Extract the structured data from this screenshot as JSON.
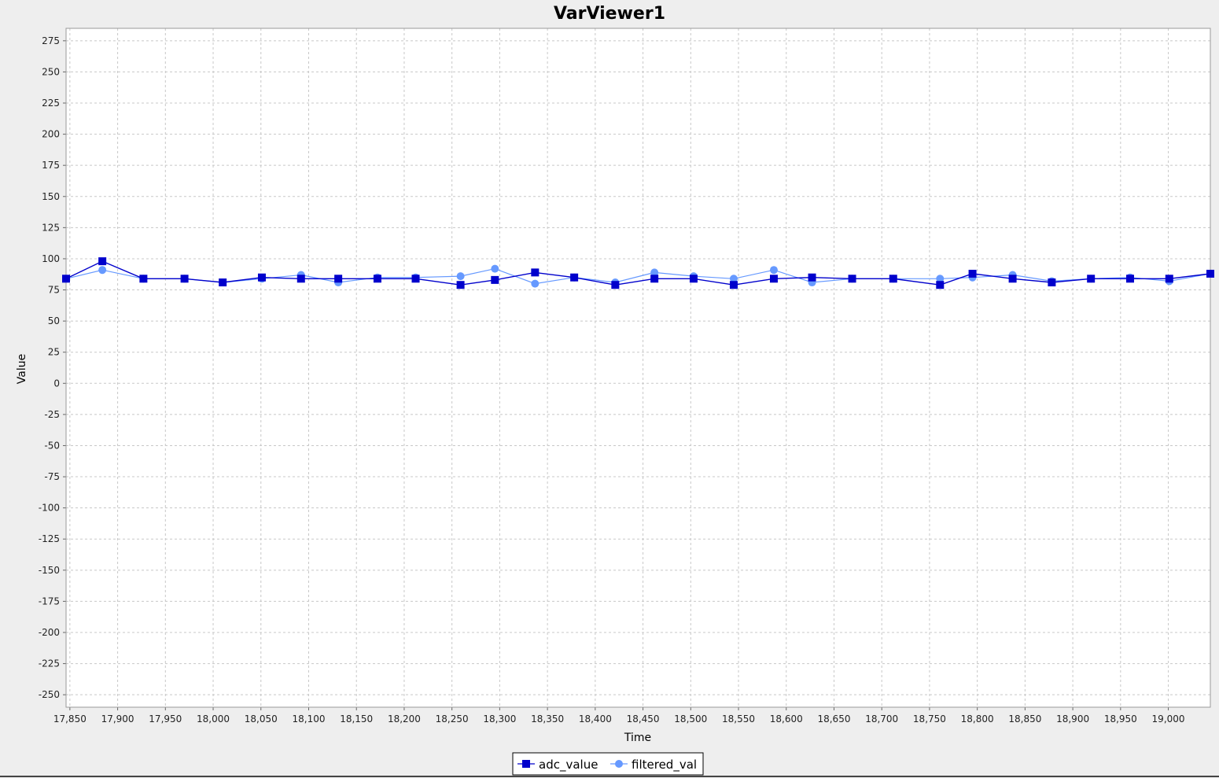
{
  "colors": {
    "background": "#eeeeee",
    "plot_background": "#ffffff",
    "gridline": "#c8c8c8",
    "adc_value": "#0000cc",
    "filtered_val": "#6699ff"
  },
  "chart_data": {
    "type": "line",
    "title": "VarViewer1",
    "xlabel": "Time",
    "ylabel": "Value",
    "xlim": [
      17846,
      19044
    ],
    "ylim": [
      -260,
      285
    ],
    "x_ticks": [
      17850,
      17900,
      17950,
      18000,
      18050,
      18100,
      18150,
      18200,
      18250,
      18300,
      18350,
      18400,
      18450,
      18500,
      18550,
      18600,
      18650,
      18700,
      18750,
      18800,
      18850,
      18900,
      18950,
      19000
    ],
    "x_tick_labels": [
      "17,850",
      "17,900",
      "17,950",
      "18,000",
      "18,050",
      "18,100",
      "18,150",
      "18,200",
      "18,250",
      "18,300",
      "18,350",
      "18,400",
      "18,450",
      "18,500",
      "18,550",
      "18,600",
      "18,650",
      "18,700",
      "18,750",
      "18,800",
      "18,850",
      "18,900",
      "18,950",
      "19,000"
    ],
    "y_ticks": [
      275,
      250,
      225,
      200,
      175,
      150,
      125,
      100,
      75,
      50,
      25,
      0,
      -25,
      -50,
      -75,
      -100,
      -125,
      -150,
      -175,
      -200,
      -225,
      -250
    ],
    "y_tick_labels": [
      "275",
      "250",
      "225",
      "200",
      "175",
      "150",
      "125",
      "100",
      "75",
      "50",
      "25",
      "0",
      "-25",
      "-50",
      "-75",
      "-100",
      "-125",
      "-150",
      "-175",
      "-200",
      "-225",
      "-250"
    ],
    "grid": true,
    "legend_position": "bottom-center",
    "series": [
      {
        "name": "adc_value",
        "marker": "square",
        "points": [
          [
            17846,
            84
          ],
          [
            17884,
            98
          ],
          [
            17927,
            84
          ],
          [
            17970,
            84
          ],
          [
            18010,
            81
          ],
          [
            18051,
            85
          ],
          [
            18092,
            84
          ],
          [
            18131,
            84
          ],
          [
            18172,
            84
          ],
          [
            18212,
            84
          ],
          [
            18259,
            79
          ],
          [
            18295,
            83
          ],
          [
            18337,
            89
          ],
          [
            18378,
            85
          ],
          [
            18421,
            79
          ],
          [
            18462,
            84
          ],
          [
            18503,
            84
          ],
          [
            18545,
            79
          ],
          [
            18587,
            84
          ],
          [
            18627,
            85
          ],
          [
            18669,
            84
          ],
          [
            18712,
            84
          ],
          [
            18761,
            79
          ],
          [
            18795,
            88
          ],
          [
            18837,
            84
          ],
          [
            18878,
            81
          ],
          [
            18919,
            84
          ],
          [
            18960,
            84
          ],
          [
            19001,
            84
          ],
          [
            19044,
            88
          ]
        ]
      },
      {
        "name": "filtered_val",
        "marker": "circle",
        "points": [
          [
            17846,
            84
          ],
          [
            17884,
            91
          ],
          [
            17927,
            84
          ],
          [
            17970,
            84
          ],
          [
            18010,
            81
          ],
          [
            18051,
            84
          ],
          [
            18092,
            87
          ],
          [
            18131,
            81
          ],
          [
            18172,
            85
          ],
          [
            18212,
            85
          ],
          [
            18259,
            86
          ],
          [
            18295,
            92
          ],
          [
            18337,
            80
          ],
          [
            18378,
            85
          ],
          [
            18421,
            81
          ],
          [
            18462,
            89
          ],
          [
            18503,
            86
          ],
          [
            18545,
            84
          ],
          [
            18587,
            91
          ],
          [
            18627,
            81
          ],
          [
            18669,
            84
          ],
          [
            18712,
            84
          ],
          [
            18761,
            84
          ],
          [
            18795,
            85
          ],
          [
            18837,
            87
          ],
          [
            18878,
            82
          ],
          [
            18919,
            84
          ],
          [
            18960,
            85
          ],
          [
            19001,
            82
          ],
          [
            19044,
            88
          ]
        ]
      }
    ]
  }
}
